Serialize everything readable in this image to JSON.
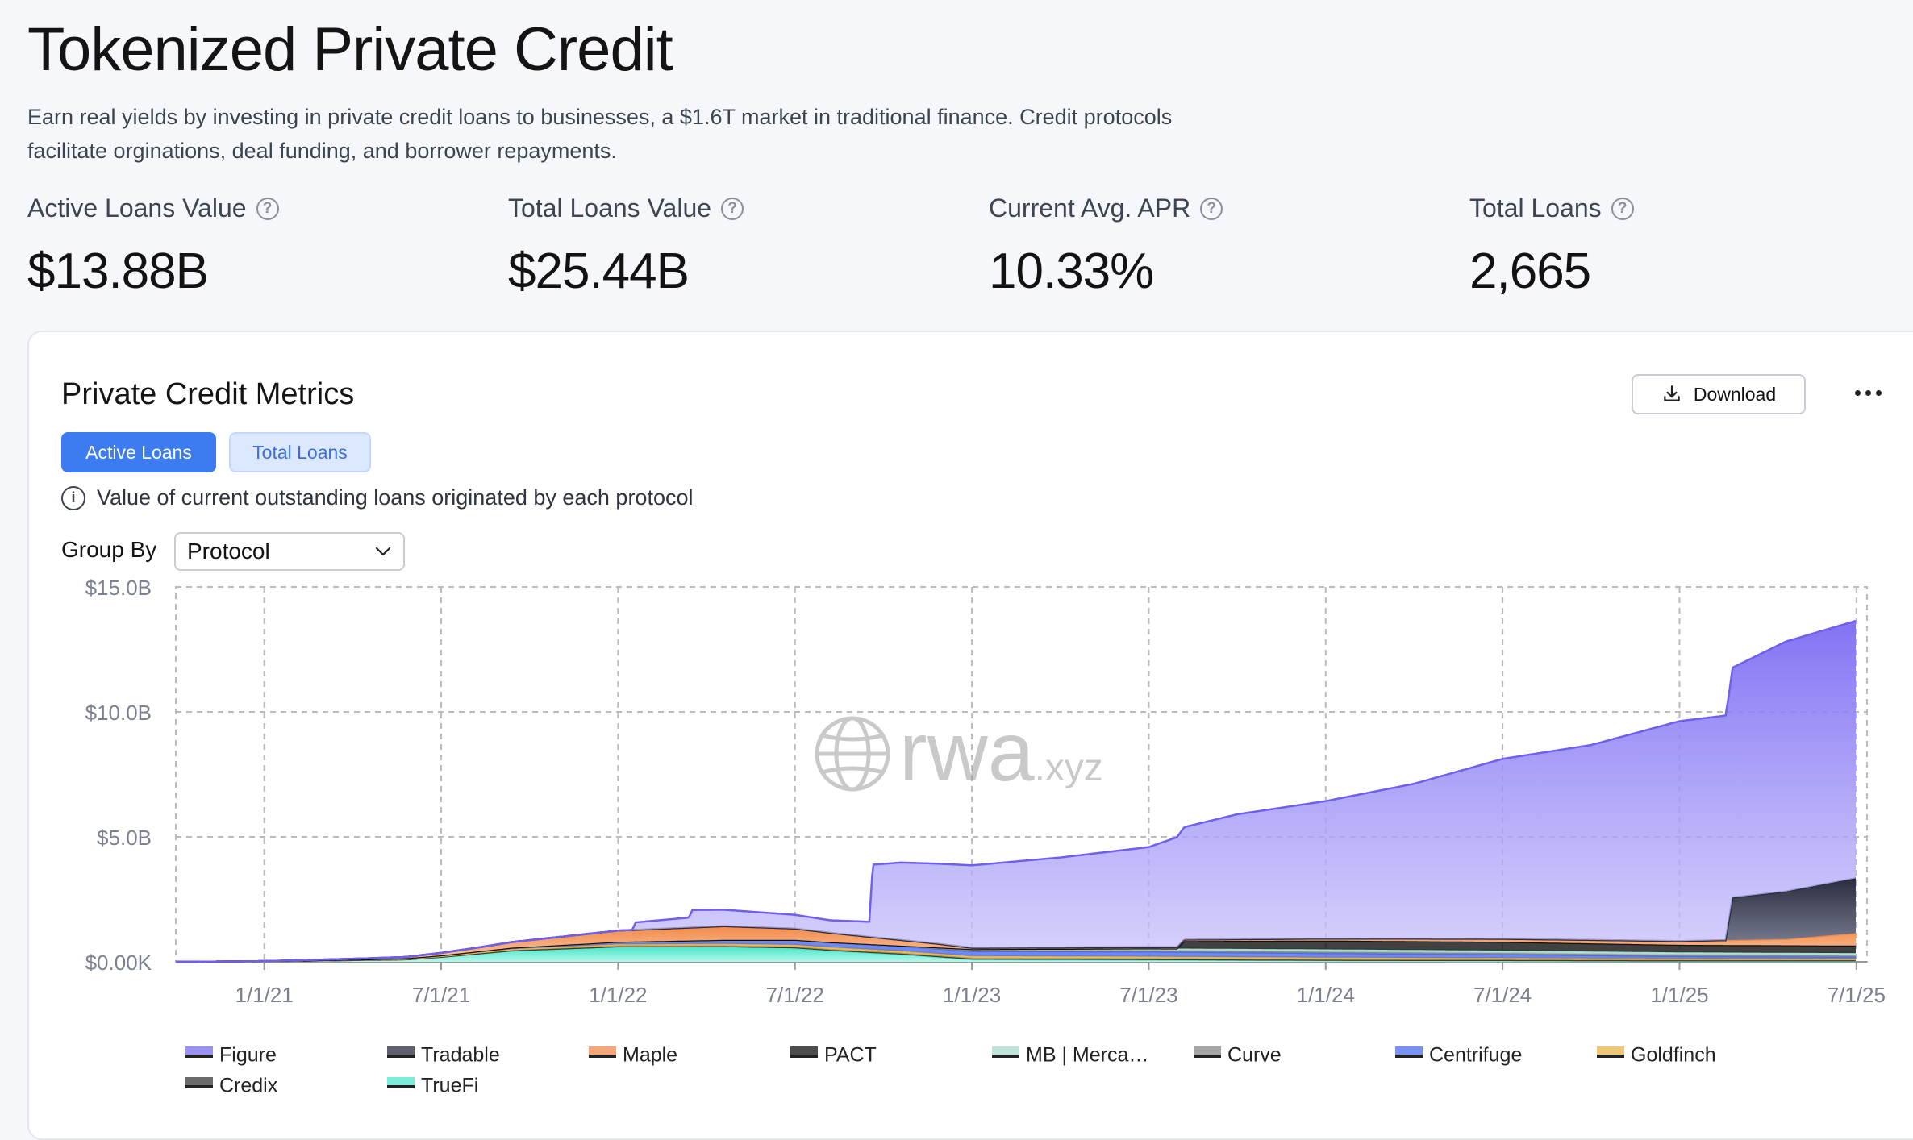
{
  "header": {
    "title": "Tokenized Private Credit",
    "description": "Earn real yields by investing in private credit loans to businesses, a $1.6T market in traditional finance. Credit protocols facilitate orginations, deal funding, and borrower repayments."
  },
  "stats": [
    {
      "label": "Active Loans Value",
      "value": "$13.88B"
    },
    {
      "label": "Total Loans Value",
      "value": "$25.44B"
    },
    {
      "label": "Current Avg. APR",
      "value": "10.33%"
    },
    {
      "label": "Total Loans",
      "value": "2,665"
    }
  ],
  "card": {
    "title": "Private Credit Metrics",
    "download_label": "Download",
    "tabs": [
      "Active Loans",
      "Total Loans"
    ],
    "info_text": "Value of current outstanding loans originated by each protocol",
    "group_by_label": "Group By",
    "group_by_value": "Protocol"
  },
  "chart_data": {
    "type": "area",
    "stacked": true,
    "title": "Private Credit Metrics",
    "watermark": "rwa.xyz",
    "y_tick_labels": [
      "$0.00K",
      "$5.0B",
      "$10.0B",
      "$15.0B"
    ],
    "y_ticks": [
      0,
      5,
      10,
      15
    ],
    "ylim": [
      0,
      15
    ],
    "yunit": "B USD",
    "x_tick_labels": [
      "1/1/21",
      "7/1/21",
      "1/1/22",
      "7/1/22",
      "1/1/23",
      "7/1/23",
      "1/1/24",
      "7/1/24",
      "1/1/25",
      "7/1/25"
    ],
    "x_ticks": [
      2021.0,
      2021.5,
      2022.0,
      2022.5,
      2023.0,
      2023.5,
      2024.0,
      2024.5,
      2025.0,
      2025.5
    ],
    "xlim": [
      2020.75,
      2025.53
    ],
    "legend_position": "bottom",
    "series": [
      {
        "name": "TrueFi",
        "color": "#4ee8cc",
        "x": [
          2020.78,
          2021.0,
          2021.4,
          2021.5,
          2021.7,
          2021.9,
          2022.0,
          2022.3,
          2022.5,
          2022.6,
          2022.8,
          2023.0,
          2023.5,
          2024.0,
          2024.5,
          2025.0,
          2025.5
        ],
        "values": [
          0.0,
          0.02,
          0.1,
          0.2,
          0.45,
          0.55,
          0.6,
          0.6,
          0.55,
          0.45,
          0.3,
          0.1,
          0.08,
          0.06,
          0.05,
          0.04,
          0.04
        ]
      },
      {
        "name": "Credix",
        "color": "#3a3a3a",
        "x": [
          2020.78,
          2021.5,
          2022.0,
          2022.5,
          2023.0,
          2023.5,
          2024.0,
          2024.5,
          2025.0,
          2025.5
        ],
        "values": [
          0.0,
          0.0,
          0.02,
          0.03,
          0.03,
          0.03,
          0.02,
          0.02,
          0.02,
          0.02
        ]
      },
      {
        "name": "Goldfinch",
        "color": "#e8b64a",
        "x": [
          2020.78,
          2021.2,
          2021.5,
          2022.0,
          2022.5,
          2023.0,
          2023.5,
          2024.0,
          2024.5,
          2025.0,
          2025.5
        ],
        "values": [
          0.0,
          0.01,
          0.03,
          0.08,
          0.1,
          0.1,
          0.1,
          0.09,
          0.08,
          0.07,
          0.06
        ]
      },
      {
        "name": "Centrifuge",
        "color": "#4a6cf0",
        "x": [
          2020.78,
          2021.3,
          2021.5,
          2022.0,
          2022.5,
          2023.0,
          2023.5,
          2024.0,
          2024.5,
          2025.0,
          2025.5
        ],
        "values": [
          0.0,
          0.01,
          0.03,
          0.1,
          0.2,
          0.2,
          0.2,
          0.18,
          0.15,
          0.1,
          0.08
        ]
      },
      {
        "name": "Curve",
        "color": "#888888",
        "x": [
          2020.78,
          2022.5,
          2023.0,
          2023.5,
          2024.0,
          2024.5,
          2025.0,
          2025.5
        ],
        "values": [
          0.0,
          0.0,
          0.03,
          0.05,
          0.05,
          0.05,
          0.05,
          0.05
        ]
      },
      {
        "name": "MB | Mercado Bitcoin",
        "color": "#a8dccf",
        "x": [
          2020.78,
          2022.8,
          2023.0,
          2023.5,
          2024.0,
          2024.5,
          2025.0,
          2025.5
        ],
        "values": [
          0.0,
          0.0,
          0.05,
          0.08,
          0.1,
          0.1,
          0.1,
          0.1
        ]
      },
      {
        "name": "PACT",
        "color": "#111111",
        "x": [
          2020.78,
          2023.58,
          2023.6,
          2024.0,
          2024.5,
          2025.0,
          2025.5
        ],
        "values": [
          0.0,
          0.0,
          0.3,
          0.35,
          0.35,
          0.3,
          0.3
        ]
      },
      {
        "name": "Maple",
        "color": "#f2894a",
        "x": [
          2020.78,
          2021.0,
          2021.4,
          2021.6,
          2021.8,
          2022.0,
          2022.3,
          2022.5,
          2022.7,
          2022.9,
          2023.0,
          2023.5,
          2024.0,
          2024.5,
          2025.0,
          2025.3,
          2025.5
        ],
        "values": [
          0.0,
          0.0,
          0.05,
          0.15,
          0.3,
          0.45,
          0.55,
          0.45,
          0.3,
          0.15,
          0.05,
          0.05,
          0.08,
          0.12,
          0.15,
          0.25,
          0.5
        ]
      },
      {
        "name": "Tradable",
        "color": "#2a2d3e",
        "x": [
          2020.78,
          2025.13,
          2025.15,
          2025.3,
          2025.5
        ],
        "values": [
          0.0,
          0.0,
          1.7,
          1.9,
          2.2
        ]
      },
      {
        "name": "Figure",
        "color": "#7a6cf2",
        "x": [
          2020.78,
          2022.04,
          2022.05,
          2022.2,
          2022.21,
          2022.5,
          2022.6,
          2022.71,
          2022.72,
          2022.8,
          2023.0,
          2023.25,
          2023.5,
          2023.6,
          2023.75,
          2024.0,
          2024.25,
          2024.5,
          2024.75,
          2025.0,
          2025.14,
          2025.15,
          2025.3,
          2025.5
        ],
        "values": [
          0.0,
          0.0,
          0.3,
          0.4,
          0.7,
          0.55,
          0.5,
          0.6,
          2.9,
          3.1,
          3.3,
          3.6,
          4.0,
          4.5,
          5.0,
          5.5,
          6.2,
          7.2,
          7.8,
          8.8,
          9.0,
          9.2,
          10.0,
          10.3
        ]
      }
    ]
  },
  "legend": [
    "Figure",
    "Tradable",
    "Maple",
    "PACT",
    "MB | Merca…",
    "Curve",
    "Centrifuge",
    "Goldfinch",
    "Credix",
    "TrueFi"
  ]
}
